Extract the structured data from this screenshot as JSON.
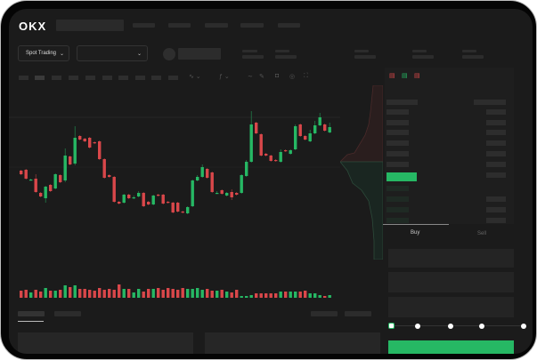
{
  "header": {
    "logo": "OKX",
    "market_select": "Spot Trading"
  },
  "trade_panel": {
    "tabs": [
      "Buy",
      "Sell"
    ],
    "active_tab": "Buy",
    "slider_value_percent": 0,
    "slider_stops": [
      0,
      25,
      50,
      75,
      100
    ]
  },
  "colors": {
    "up": "#26b864",
    "down": "#d9474a",
    "background": "#1b1b1b",
    "accent": "#26b864"
  },
  "chart_data": {
    "type": "candlestick",
    "candles": [
      [
        58,
        54,
        59,
        53
      ],
      [
        59,
        49,
        60,
        48
      ],
      [
        48,
        48,
        49,
        47
      ],
      [
        49,
        34,
        54,
        33
      ],
      [
        33,
        29,
        34,
        28
      ],
      [
        27,
        40,
        41,
        22
      ],
      [
        42,
        35,
        43,
        34
      ],
      [
        38,
        54,
        55,
        37
      ],
      [
        53,
        45,
        54,
        44
      ],
      [
        47,
        75,
        83,
        45
      ],
      [
        74,
        65,
        75,
        64
      ],
      [
        66,
        95,
        108,
        64
      ],
      [
        97,
        93,
        98,
        92
      ],
      [
        94,
        91,
        95,
        90
      ],
      [
        95,
        84,
        96,
        83
      ],
      [
        90,
        89,
        91,
        88
      ],
      [
        91,
        71,
        92,
        70
      ],
      [
        71,
        50,
        72,
        49
      ],
      [
        53,
        51,
        54,
        50
      ],
      [
        51,
        23,
        52,
        22
      ],
      [
        23,
        21,
        24,
        20
      ],
      [
        22,
        31,
        32,
        21
      ],
      [
        31,
        27,
        32,
        26
      ],
      [
        28,
        28,
        30,
        26
      ],
      [
        29,
        33,
        35,
        28
      ],
      [
        33,
        18,
        34,
        17
      ],
      [
        23,
        20,
        24,
        19
      ],
      [
        20,
        30,
        31,
        19
      ],
      [
        31,
        30,
        32,
        29
      ],
      [
        31,
        21,
        32,
        20
      ],
      [
        23,
        22,
        24,
        21
      ],
      [
        22,
        11,
        23,
        10
      ],
      [
        22,
        12,
        23,
        11
      ],
      [
        12,
        11,
        13,
        10
      ],
      [
        10,
        17,
        18,
        9
      ],
      [
        18,
        47,
        48,
        17
      ],
      [
        47,
        51,
        53,
        46
      ],
      [
        51,
        62,
        65,
        50
      ],
      [
        60,
        50,
        61,
        49
      ],
      [
        56,
        34,
        57,
        33
      ],
      [
        33,
        33,
        35,
        32
      ],
      [
        36,
        32,
        37,
        31
      ],
      [
        30,
        33,
        34,
        29
      ],
      [
        34,
        28,
        37,
        25
      ],
      [
        33,
        31,
        34,
        30
      ],
      [
        33,
        53,
        54,
        32
      ],
      [
        52,
        68,
        70,
        51
      ],
      [
        68,
        110,
        125,
        67
      ],
      [
        112,
        100,
        113,
        99
      ],
      [
        99,
        75,
        100,
        74
      ],
      [
        77,
        75,
        78,
        74
      ],
      [
        75,
        69,
        76,
        68
      ],
      [
        70,
        69,
        71,
        68
      ],
      [
        68,
        79,
        82,
        67
      ],
      [
        81,
        80,
        82,
        79
      ],
      [
        77,
        81,
        82,
        76
      ],
      [
        82,
        108,
        110,
        81
      ],
      [
        110,
        97,
        111,
        96
      ],
      [
        97,
        93,
        98,
        92
      ],
      [
        91,
        100,
        104,
        90
      ],
      [
        100,
        109,
        114,
        99
      ],
      [
        109,
        118,
        123,
        108
      ],
      [
        110,
        103,
        111,
        102
      ],
      [
        101,
        107,
        112,
        100
      ]
    ],
    "volumes": [
      8,
      9,
      6,
      9,
      7,
      11,
      8,
      8,
      9,
      14,
      12,
      14,
      10,
      10,
      9,
      8,
      11,
      9,
      10,
      9,
      15,
      10,
      10,
      6,
      10,
      7,
      10,
      10,
      11,
      9,
      11,
      10,
      9,
      11,
      10,
      10,
      11,
      9,
      10,
      8,
      8,
      9,
      7,
      6,
      9,
      2,
      2,
      3,
      5,
      5,
      5,
      5,
      5,
      7,
      7,
      7,
      7,
      7,
      8,
      5,
      5,
      3,
      2,
      3
    ]
  }
}
